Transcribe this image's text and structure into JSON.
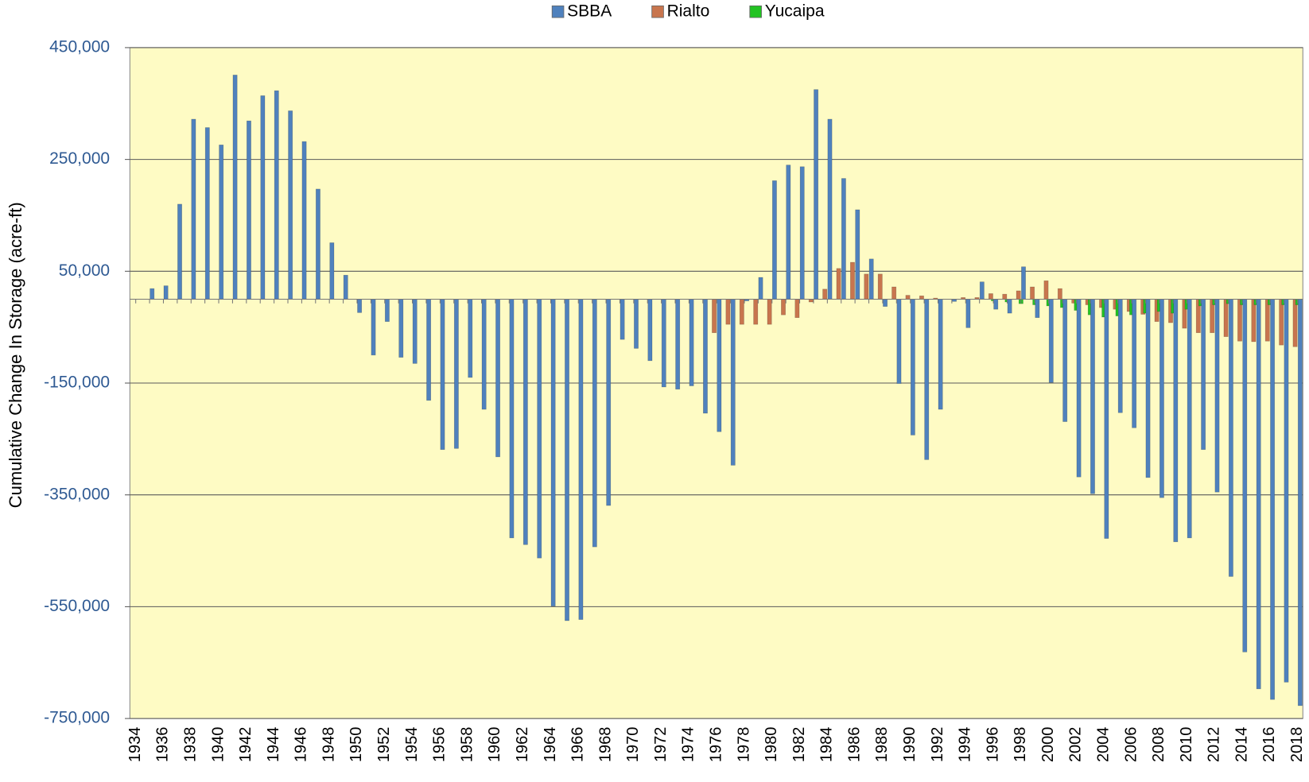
{
  "chart_data": {
    "type": "bar",
    "y_label": "Cumulative Change In Storage (acre-ft)",
    "categories": [
      1934,
      null,
      1936,
      null,
      1938,
      null,
      1940,
      null,
      1942,
      null,
      1944,
      null,
      1946,
      null,
      1948,
      null,
      1950,
      null,
      1952,
      null,
      1954,
      null,
      1956,
      null,
      1958,
      null,
      1960,
      null,
      1962,
      null,
      1964,
      null,
      1966,
      null,
      1968,
      null,
      1970,
      null,
      1972,
      null,
      1974,
      null,
      1976,
      null,
      1978,
      null,
      1980,
      null,
      1982,
      null,
      1984,
      null,
      1986,
      null,
      1988,
      null,
      1990,
      null,
      1992,
      null,
      1994,
      null,
      1996,
      null,
      1998,
      null,
      2000,
      null,
      2002,
      null,
      2004,
      null,
      2006,
      null,
      2008,
      null,
      2010,
      null,
      2012,
      null,
      2014,
      null,
      2016,
      null,
      2018
    ],
    "series": [
      {
        "name": "SBBA",
        "color": "#4f81bd",
        "values": [
          0,
          19000,
          24000,
          170000,
          322000,
          307000,
          276000,
          401000,
          319000,
          364000,
          373000,
          337000,
          282000,
          197000,
          101000,
          43000,
          -24000,
          -100000,
          -40000,
          -104000,
          -115000,
          -181000,
          -269000,
          -267000,
          -140000,
          -197000,
          -282000,
          -427000,
          -439000,
          -463000,
          -549000,
          -575000,
          -573000,
          -443000,
          -369000,
          -72000,
          -88000,
          -110000,
          -157000,
          -161000,
          -155000,
          -204000,
          -237000,
          -297000,
          -3000,
          39000,
          212000,
          240000,
          237000,
          375000,
          322000,
          216000,
          160000,
          72000,
          -13000,
          -151000,
          -243000,
          -287000,
          -197000,
          -4000,
          -51000,
          31000,
          -18000,
          -25000,
          58000,
          -33000,
          -149000,
          -219000,
          -318000,
          -348000,
          -428000,
          -203000,
          -230000,
          -319000,
          -355000,
          -434000,
          -427000,
          -269000,
          -345000,
          -496000,
          -631000,
          -697000,
          -716000,
          -685000,
          -727000
        ]
      },
      {
        "name": "Rialto",
        "color": "#c8754e",
        "values": [
          null,
          null,
          null,
          null,
          null,
          null,
          null,
          null,
          null,
          null,
          null,
          null,
          null,
          null,
          null,
          null,
          null,
          null,
          null,
          null,
          null,
          null,
          null,
          null,
          null,
          null,
          null,
          null,
          null,
          null,
          null,
          null,
          null,
          null,
          null,
          null,
          null,
          null,
          null,
          null,
          null,
          null,
          -60000,
          -45000,
          -45000,
          -45000,
          -45000,
          -28000,
          -33000,
          -5000,
          18000,
          55000,
          66000,
          45000,
          45000,
          22000,
          7000,
          6000,
          2000,
          0,
          3000,
          3000,
          10000,
          9000,
          15000,
          22000,
          33000,
          19000,
          -7000,
          -10000,
          -15000,
          -18000,
          -22000,
          -27000,
          -40000,
          -42000,
          -52000,
          -60000,
          -60000,
          -67000,
          -75000,
          -76000,
          -75000,
          -82000,
          -85000
        ]
      },
      {
        "name": "Yucaipa",
        "color": "#22c322",
        "values": [
          null,
          null,
          null,
          null,
          null,
          null,
          null,
          null,
          null,
          null,
          null,
          null,
          null,
          null,
          null,
          null,
          null,
          null,
          null,
          null,
          null,
          null,
          null,
          null,
          null,
          null,
          null,
          null,
          null,
          null,
          null,
          null,
          null,
          null,
          null,
          null,
          null,
          null,
          null,
          null,
          null,
          null,
          null,
          null,
          null,
          null,
          null,
          null,
          null,
          null,
          null,
          null,
          null,
          null,
          null,
          null,
          null,
          null,
          null,
          null,
          null,
          null,
          -3000,
          -5000,
          -8000,
          -10000,
          -12000,
          -15000,
          -20000,
          -28000,
          -32000,
          -30000,
          -28000,
          -25000,
          -22000,
          -25000,
          -18000,
          -12000,
          -10000,
          -8000,
          -10000,
          -10000,
          -10000,
          -10000,
          -10000
        ]
      }
    ],
    "ylim": [
      -750000,
      450000
    ],
    "yticks": [
      {
        "value": -750000,
        "label": "-750,000"
      },
      {
        "value": -550000,
        "label": "-550,000"
      },
      {
        "value": -350000,
        "label": "-350,000"
      },
      {
        "value": -150000,
        "label": "-150,000"
      },
      {
        "value": 50000,
        "label": "50,000"
      },
      {
        "value": 250000,
        "label": "250,000"
      },
      {
        "value": 450000,
        "label": "450,000"
      }
    ],
    "grid": true,
    "legend": "top",
    "background": "#fefbc4"
  }
}
